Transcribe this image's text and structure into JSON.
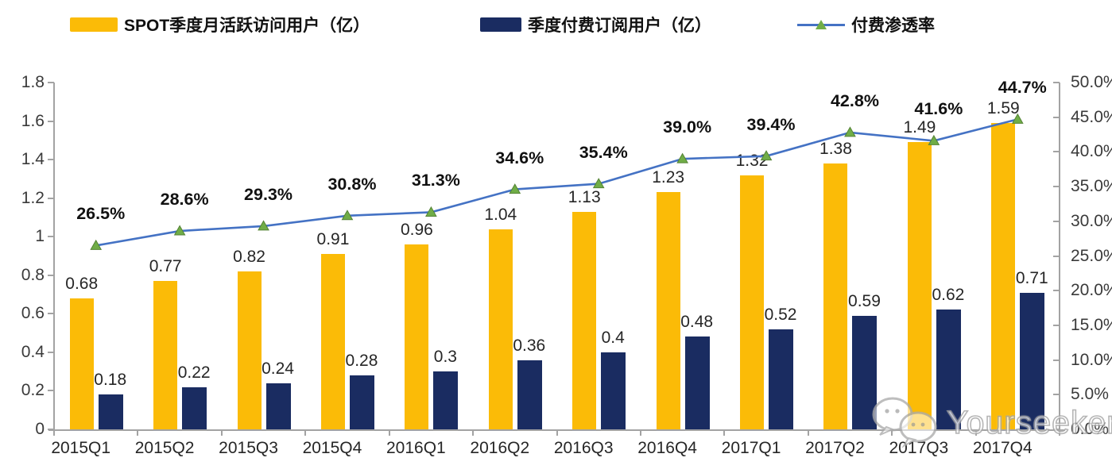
{
  "chart_data": {
    "type": "bar",
    "subtype": "combo-bar-line-dual-axis",
    "categories": [
      "2015Q1",
      "2015Q2",
      "2015Q3",
      "2015Q4",
      "2016Q1",
      "2016Q2",
      "2016Q3",
      "2016Q4",
      "2017Q1",
      "2017Q2",
      "2017Q3",
      "2017Q4"
    ],
    "series": [
      {
        "name": "SPOT季度月活跃访问用户（亿）",
        "type": "bar",
        "axis": "left",
        "color": "#FBBB07",
        "values": [
          0.68,
          0.77,
          0.82,
          0.91,
          0.96,
          1.04,
          1.13,
          1.23,
          1.32,
          1.38,
          1.49,
          1.59
        ],
        "labels": [
          "0.68",
          "0.77",
          "0.82",
          "0.91",
          "0.96",
          "1.04",
          "1.13",
          "1.23",
          "1.32",
          "1.38",
          "1.49",
          "1.59"
        ]
      },
      {
        "name": "季度付费订阅用户（亿）",
        "type": "bar",
        "axis": "left",
        "color": "#1A2C61",
        "values": [
          0.18,
          0.22,
          0.24,
          0.28,
          0.3,
          0.36,
          0.4,
          0.48,
          0.52,
          0.59,
          0.62,
          0.71
        ],
        "labels": [
          "0.18",
          "0.22",
          "0.24",
          "0.28",
          "0.3",
          "0.36",
          "0.4",
          "0.48",
          "0.52",
          "0.59",
          "0.62",
          "0.71"
        ]
      },
      {
        "name": "付费渗透率",
        "type": "line",
        "axis": "right",
        "color": "#4472C4",
        "marker_color": "#70AD47",
        "marker_edge_color": "#548235",
        "values": [
          26.5,
          28.6,
          29.3,
          30.8,
          31.3,
          34.6,
          35.4,
          39.0,
          39.4,
          42.8,
          41.6,
          44.7
        ],
        "labels": [
          "26.5%",
          "28.6%",
          "29.3%",
          "30.8%",
          "31.3%",
          "34.6%",
          "35.4%",
          "39.0%",
          "39.4%",
          "42.8%",
          "41.6%",
          "44.7%"
        ]
      }
    ],
    "left_axis": {
      "min": 0,
      "max": 1.8,
      "tick_labels": [
        "1.8",
        "1.6",
        "1.4",
        "1.2",
        "1",
        "0.8",
        "0.6",
        "0.4",
        "0.2",
        "0"
      ]
    },
    "right_axis": {
      "min": 0,
      "max": 50.0,
      "tick_labels": [
        "50.0%",
        "45.0%",
        "40.0%",
        "35.0%",
        "30.0%",
        "25.0%",
        "20.0%",
        "15.0%",
        "10.0%",
        "5.0%",
        "0.0%"
      ]
    },
    "grid": false,
    "legend_position": "top",
    "axis_color": "#a3a3a3"
  },
  "watermark": {
    "text": "Yourseeker",
    "icon": "wechat-icon"
  }
}
